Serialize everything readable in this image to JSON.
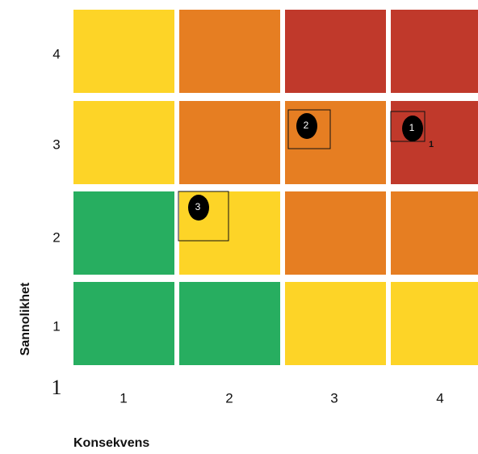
{
  "chart_data": {
    "type": "heatmap",
    "title": "",
    "xlabel": "Konsekvens",
    "ylabel": "Sannolikhet",
    "corner_label": "1",
    "x_categories": [
      "1",
      "2",
      "3",
      "4"
    ],
    "y_categories": [
      "1",
      "2",
      "3",
      "4"
    ],
    "legend": null,
    "grid": false,
    "palette": {
      "green": "#27ae60",
      "yellow": "#fdd427",
      "orange": "#e67e22",
      "red": "#c0392b"
    },
    "cells": [
      {
        "x": 1,
        "y": 4,
        "level": "yellow"
      },
      {
        "x": 2,
        "y": 4,
        "level": "orange"
      },
      {
        "x": 3,
        "y": 4,
        "level": "red"
      },
      {
        "x": 4,
        "y": 4,
        "level": "red"
      },
      {
        "x": 1,
        "y": 3,
        "level": "yellow"
      },
      {
        "x": 2,
        "y": 3,
        "level": "orange"
      },
      {
        "x": 3,
        "y": 3,
        "level": "orange"
      },
      {
        "x": 4,
        "y": 3,
        "level": "red"
      },
      {
        "x": 1,
        "y": 2,
        "level": "green"
      },
      {
        "x": 2,
        "y": 2,
        "level": "yellow"
      },
      {
        "x": 3,
        "y": 2,
        "level": "orange"
      },
      {
        "x": 4,
        "y": 2,
        "level": "orange"
      },
      {
        "x": 1,
        "y": 1,
        "level": "green"
      },
      {
        "x": 2,
        "y": 1,
        "level": "green"
      },
      {
        "x": 3,
        "y": 1,
        "level": "yellow"
      },
      {
        "x": 4,
        "y": 1,
        "level": "yellow"
      }
    ],
    "risks": [
      {
        "id": "1",
        "x": 4,
        "y": 3,
        "sub_label": "1"
      },
      {
        "id": "2",
        "x": 3,
        "y": 3,
        "sub_label": ""
      },
      {
        "id": "3",
        "x": 2,
        "y": 2,
        "sub_label": ""
      }
    ]
  }
}
